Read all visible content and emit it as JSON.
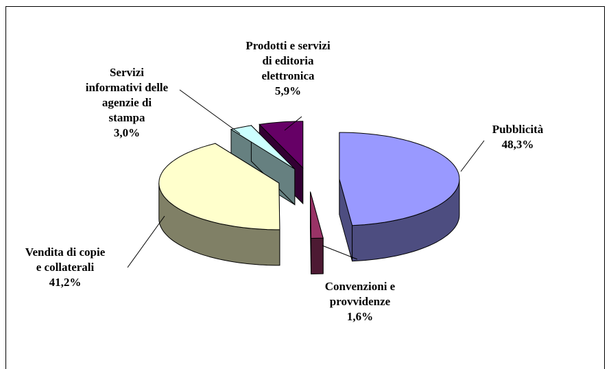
{
  "chart_data": {
    "type": "pie3d",
    "categories": [
      "Pubblicità",
      "Convenzioni e\nprovvidenze",
      "Vendita di copie\ne collaterali",
      "Servizi\ninformativi delle\nagenzie di\nstampa",
      "Prodotti e servizi\ndi editoria\nelettronica"
    ],
    "values": [
      48.3,
      1.6,
      41.2,
      3.0,
      5.9
    ],
    "value_labels": [
      "48,3%",
      "1,6%",
      "41,2%",
      "3,0%",
      "5,9%"
    ],
    "colors": [
      "#9999ff",
      "#993366",
      "#ffffcc",
      "#ccffff",
      "#660066"
    ]
  }
}
